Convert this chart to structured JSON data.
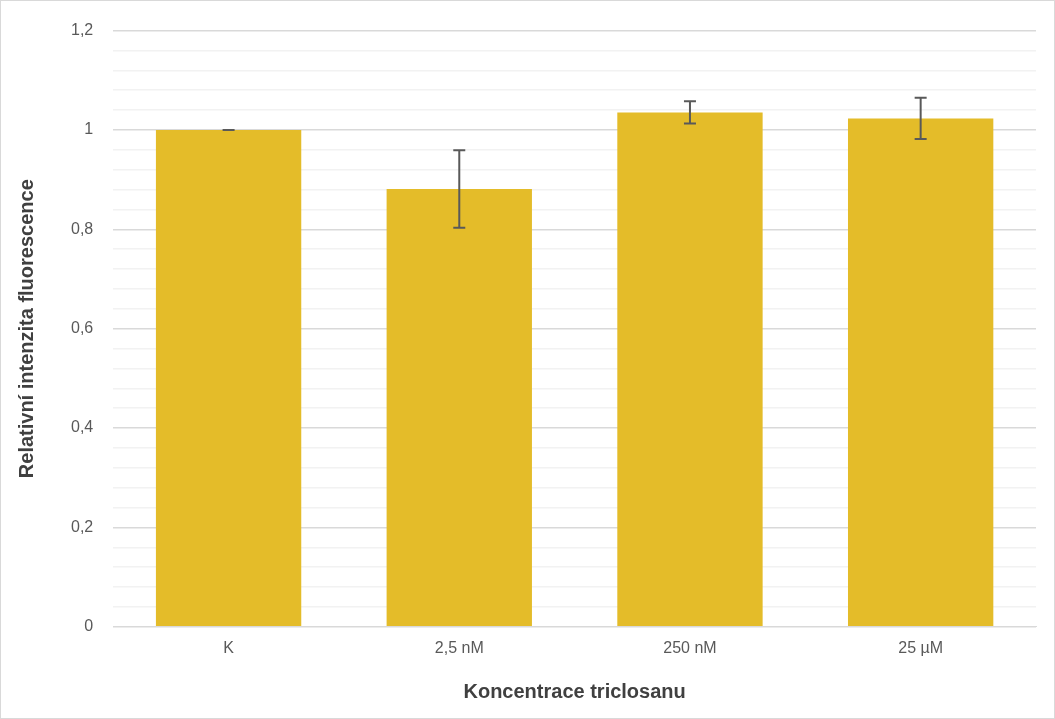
{
  "chart_data": {
    "type": "bar",
    "xlabel": "Koncentrace triclosanu",
    "ylabel": "Relativní intenzita fluorescence",
    "categories": [
      "K",
      "2,5 nM",
      "250 nM",
      "25 µM"
    ],
    "values": [
      1.0,
      0.881,
      1.035,
      1.023
    ],
    "errors": [
      [
        1.0,
        1.0
      ],
      [
        0.803,
        0.959
      ],
      [
        1.013,
        1.058
      ],
      [
        0.982,
        1.065
      ]
    ],
    "color": "#e4bc29",
    "ylim": [
      0,
      1.2
    ],
    "yticks": [
      {
        "value": 0,
        "label": "0"
      },
      {
        "value": 0.04,
        "label": null
      },
      {
        "value": 0.08,
        "label": null
      },
      {
        "value": 0.12,
        "label": null
      },
      {
        "value": 0.16,
        "label": null
      },
      {
        "value": 0.2,
        "label": "0,2"
      },
      {
        "value": 0.24,
        "label": null
      },
      {
        "value": 0.28,
        "label": null
      },
      {
        "value": 0.32,
        "label": null
      },
      {
        "value": 0.36,
        "label": null
      },
      {
        "value": 0.4,
        "label": "0,4"
      },
      {
        "value": 0.44,
        "label": null
      },
      {
        "value": 0.48,
        "label": null
      },
      {
        "value": 0.52,
        "label": null
      },
      {
        "value": 0.56,
        "label": null
      },
      {
        "value": 0.6,
        "label": "0,6"
      },
      {
        "value": 0.64,
        "label": null
      },
      {
        "value": 0.68,
        "label": null
      },
      {
        "value": 0.72,
        "label": null
      },
      {
        "value": 0.76,
        "label": null
      },
      {
        "value": 0.8,
        "label": "0,8"
      },
      {
        "value": 0.84,
        "label": null
      },
      {
        "value": 0.88,
        "label": null
      },
      {
        "value": 0.92,
        "label": null
      },
      {
        "value": 0.96,
        "label": null
      },
      {
        "value": 1,
        "label": "1"
      },
      {
        "value": 1.04,
        "label": null
      },
      {
        "value": 1.08,
        "label": null
      },
      {
        "value": 1.12,
        "label": null
      },
      {
        "value": 1.16,
        "label": null
      },
      {
        "value": 1.2,
        "label": "1,2"
      }
    ],
    "grid": "y",
    "legend": false
  }
}
